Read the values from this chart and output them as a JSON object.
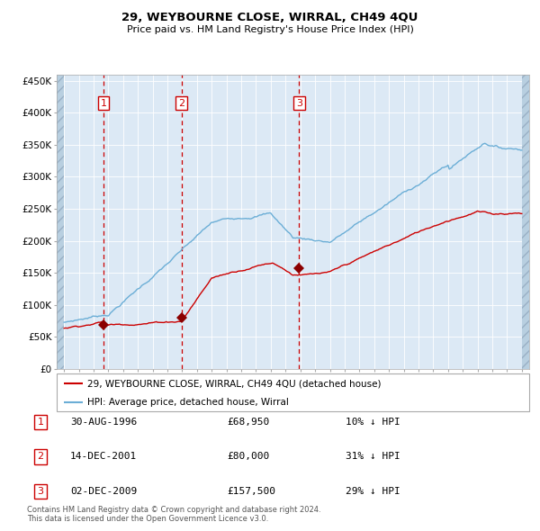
{
  "title": "29, WEYBOURNE CLOSE, WIRRAL, CH49 4QU",
  "subtitle": "Price paid vs. HM Land Registry's House Price Index (HPI)",
  "legend_line1": "29, WEYBOURNE CLOSE, WIRRAL, CH49 4QU (detached house)",
  "legend_line2": "HPI: Average price, detached house, Wirral",
  "table_rows": [
    {
      "num": "1",
      "date": "30-AUG-1996",
      "price": "£68,950",
      "pct": "10% ↓ HPI"
    },
    {
      "num": "2",
      "date": "14-DEC-2001",
      "price": "£80,000",
      "pct": "31% ↓ HPI"
    },
    {
      "num": "3",
      "date": "02-DEC-2009",
      "price": "£157,500",
      "pct": "29% ↓ HPI"
    }
  ],
  "footer": "Contains HM Land Registry data © Crown copyright and database right 2024.\nThis data is licensed under the Open Government Licence v3.0.",
  "hpi_color": "#6baed6",
  "price_color": "#cc0000",
  "marker_color": "#8b0000",
  "plot_bg": "#dce9f5",
  "ylim": [
    0,
    460000
  ],
  "xlim": [
    1993.5,
    2025.5
  ],
  "yticks": [
    0,
    50000,
    100000,
    150000,
    200000,
    250000,
    300000,
    350000,
    400000,
    450000
  ],
  "xticks": [
    1994,
    1995,
    1996,
    1997,
    1998,
    1999,
    2000,
    2001,
    2002,
    2003,
    2004,
    2005,
    2006,
    2007,
    2008,
    2009,
    2010,
    2011,
    2012,
    2013,
    2014,
    2015,
    2016,
    2017,
    2018,
    2019,
    2020,
    2021,
    2022,
    2023,
    2024,
    2025
  ],
  "sale_dates": [
    1996.66,
    2001.95,
    2009.92
  ],
  "sale_prices": [
    68950,
    80000,
    157500
  ],
  "sale_labels": [
    "1",
    "2",
    "3"
  ]
}
